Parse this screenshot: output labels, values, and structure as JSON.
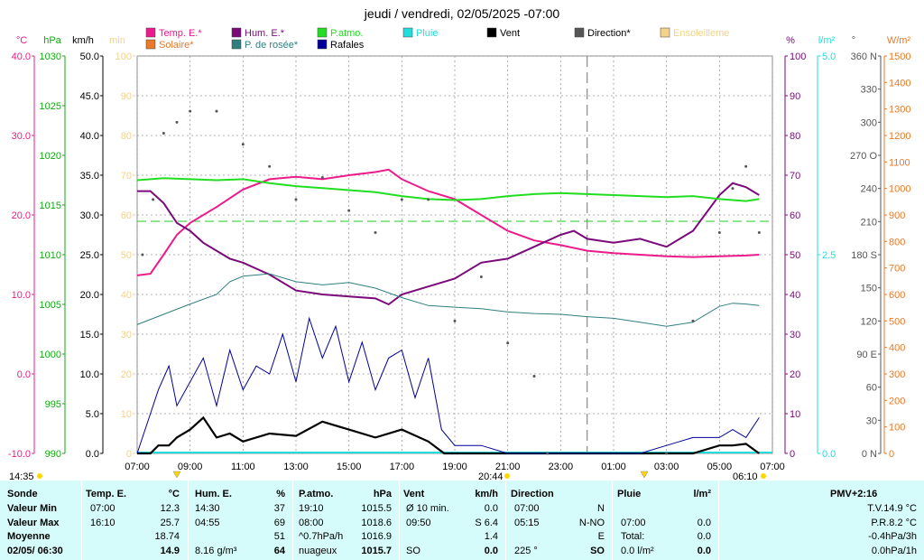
{
  "title": "jeudi / vendredi, 02/05/2025  -07:00",
  "colors": {
    "temp": "#ec1b8c",
    "hum": "#7a0a7a",
    "patmo": "#22dd22",
    "pluie": "#22dddd",
    "vent": "#000000",
    "direction": "#555555",
    "ensoleillement": "#f3d28a",
    "solaire": "#e87a2a",
    "rosee": "#2f7f7f",
    "rafales": "#000099"
  },
  "legend": [
    {
      "key": "temp",
      "label": "Temp. E.*"
    },
    {
      "key": "hum",
      "label": "Hum. E.*"
    },
    {
      "key": "patmo",
      "label": "P.atmo."
    },
    {
      "key": "pluie",
      "label": "Pluie"
    },
    {
      "key": "vent",
      "label": "Vent"
    },
    {
      "key": "direction",
      "label": "Direction*"
    },
    {
      "key": "ensoleillement",
      "label": "Ensoleilleme"
    },
    {
      "key": "solaire",
      "label": "Solaire*"
    },
    {
      "key": "rosee",
      "label": "P. de rosée*"
    },
    {
      "key": "rafales",
      "label": "Rafales"
    }
  ],
  "axis_units": {
    "temp": "°C",
    "hpa": "hPa",
    "kmh": "km/h",
    "min": "min",
    "pct": "%",
    "rain": "l/m²",
    "deg": "°",
    "wm2": "W/m²"
  },
  "chart_data": {
    "type": "line",
    "x_ticks": [
      "07:00",
      "09:00",
      "11:00",
      "13:00",
      "15:00",
      "17:00",
      "19:00",
      "21:00",
      "23:00",
      "01:00",
      "03:00",
      "05:00",
      "07:00"
    ],
    "x_range_hours": [
      0,
      24
    ],
    "markers": {
      "sunrise": "06:10",
      "sunset": "20:44",
      "start": "14:35"
    },
    "axes": {
      "temp": {
        "min": -10,
        "max": 40,
        "ticks": [
          -10.0,
          0.0,
          10.0,
          20.0,
          30.0,
          40.0
        ]
      },
      "hpa": {
        "min": 990,
        "max": 1030,
        "ticks": [
          990,
          995,
          1000,
          1005,
          1010,
          1015,
          1020,
          1025,
          1030
        ]
      },
      "kmh": {
        "min": 0,
        "max": 50,
        "ticks": [
          0.0,
          5.0,
          10.0,
          15.0,
          20.0,
          25.0,
          30.0,
          35.0,
          40.0,
          45.0,
          50.0
        ]
      },
      "min": {
        "min": 0,
        "max": 100,
        "ticks": [
          0,
          10,
          20,
          30,
          40,
          50,
          60,
          70,
          80,
          90,
          100
        ]
      },
      "pct": {
        "min": 0,
        "max": 100,
        "ticks": [
          0,
          10,
          20,
          30,
          40,
          50,
          60,
          70,
          80,
          90,
          100
        ]
      },
      "rain": {
        "min": 0,
        "max": 5,
        "ticks": [
          0.0,
          2.5,
          5.0
        ]
      },
      "deg": {
        "ticks": [
          "0 N",
          "30",
          "60",
          "90 E",
          "120",
          "150",
          "180 S",
          "210",
          "240",
          "270 O",
          "300",
          "330",
          "360 N"
        ]
      },
      "wm2": {
        "min": 0,
        "max": 1500,
        "ticks": [
          0,
          100,
          200,
          300,
          400,
          500,
          600,
          700,
          800,
          900,
          1000,
          1100,
          1200,
          1300,
          1400,
          1500
        ]
      }
    },
    "series": [
      {
        "key": "temp",
        "name": "Temp. E.*",
        "axis": "temp",
        "points": [
          [
            0,
            12.4
          ],
          [
            0.5,
            12.6
          ],
          [
            1,
            15
          ],
          [
            1.5,
            17.5
          ],
          [
            2,
            19
          ],
          [
            3,
            21
          ],
          [
            4,
            23.2
          ],
          [
            5,
            24.5
          ],
          [
            6,
            24.8
          ],
          [
            7,
            24.5
          ],
          [
            8,
            25
          ],
          [
            9,
            25.4
          ],
          [
            9.5,
            25.7
          ],
          [
            10,
            24.5
          ],
          [
            11,
            23
          ],
          [
            12,
            22
          ],
          [
            13,
            20
          ],
          [
            14,
            18
          ],
          [
            15,
            16.8
          ],
          [
            16,
            16.2
          ],
          [
            17,
            15.5
          ],
          [
            18,
            15.2
          ],
          [
            19,
            15
          ],
          [
            20,
            14.8
          ],
          [
            21,
            14.7
          ],
          [
            22,
            14.8
          ],
          [
            23,
            14.9
          ],
          [
            23.5,
            15
          ]
        ]
      },
      {
        "key": "hum",
        "name": "Hum. E.*",
        "axis": "pct",
        "points": [
          [
            0,
            66
          ],
          [
            0.5,
            66
          ],
          [
            1,
            63
          ],
          [
            1.5,
            58
          ],
          [
            2,
            56
          ],
          [
            2.5,
            53
          ],
          [
            3,
            51
          ],
          [
            3.5,
            49
          ],
          [
            4,
            48
          ],
          [
            5,
            45
          ],
          [
            6,
            41
          ],
          [
            7,
            40
          ],
          [
            8,
            39.5
          ],
          [
            9,
            39
          ],
          [
            9.5,
            37.5
          ],
          [
            10,
            40
          ],
          [
            11,
            42
          ],
          [
            12,
            44
          ],
          [
            13,
            48
          ],
          [
            14,
            49
          ],
          [
            15,
            52
          ],
          [
            16,
            55
          ],
          [
            16.5,
            56
          ],
          [
            17,
            54
          ],
          [
            18,
            53
          ],
          [
            19,
            54
          ],
          [
            20,
            52
          ],
          [
            21,
            56
          ],
          [
            22,
            65
          ],
          [
            22.5,
            68
          ],
          [
            23,
            67
          ],
          [
            23.5,
            65
          ]
        ]
      },
      {
        "key": "patmo",
        "name": "P.atmo.",
        "axis": "hpa",
        "points": [
          [
            0,
            1017.5
          ],
          [
            1,
            1017.7
          ],
          [
            2,
            1017.6
          ],
          [
            3,
            1017.5
          ],
          [
            4,
            1017.6
          ],
          [
            5,
            1017.2
          ],
          [
            6,
            1016.9
          ],
          [
            7,
            1016.7
          ],
          [
            8,
            1016.5
          ],
          [
            9,
            1016.3
          ],
          [
            10,
            1015.9
          ],
          [
            11,
            1015.6
          ],
          [
            12,
            1015.5
          ],
          [
            13,
            1015.6
          ],
          [
            14,
            1015.9
          ],
          [
            15,
            1016.1
          ],
          [
            16,
            1016.2
          ],
          [
            17,
            1016.1
          ],
          [
            18,
            1016.0
          ],
          [
            19,
            1015.9
          ],
          [
            20,
            1015.8
          ],
          [
            21,
            1015.9
          ],
          [
            22,
            1015.6
          ],
          [
            23,
            1015.4
          ],
          [
            23.5,
            1015.6
          ]
        ]
      },
      {
        "key": "rosee",
        "name": "P. de rosée*",
        "axis": "temp",
        "points": [
          [
            0,
            6.2
          ],
          [
            1,
            7.5
          ],
          [
            2,
            8.8
          ],
          [
            3,
            10
          ],
          [
            3.5,
            11.6
          ],
          [
            4,
            12.3
          ],
          [
            5,
            12.6
          ],
          [
            6,
            11.6
          ],
          [
            7,
            11.2
          ],
          [
            8,
            11.5
          ],
          [
            9,
            10.8
          ],
          [
            10,
            9.6
          ],
          [
            11,
            8.6
          ],
          [
            12,
            8.4
          ],
          [
            13,
            8.2
          ],
          [
            14,
            7.8
          ],
          [
            15,
            7.6
          ],
          [
            16,
            7.5
          ],
          [
            17,
            7.2
          ],
          [
            18,
            7.0
          ],
          [
            19,
            6.5
          ],
          [
            20,
            6.0
          ],
          [
            21,
            6.5
          ],
          [
            22,
            8.5
          ],
          [
            22.5,
            8.9
          ],
          [
            23,
            8.8
          ],
          [
            23.5,
            8.6
          ]
        ]
      },
      {
        "key": "vent",
        "name": "Vent",
        "axis": "kmh",
        "points": [
          [
            0,
            0
          ],
          [
            0.5,
            0
          ],
          [
            0.8,
            1
          ],
          [
            1.2,
            1
          ],
          [
            1.5,
            2
          ],
          [
            2,
            3
          ],
          [
            2.5,
            4.5
          ],
          [
            3,
            2
          ],
          [
            3.5,
            2.5
          ],
          [
            4,
            1.5
          ],
          [
            5,
            2.5
          ],
          [
            6,
            2.2
          ],
          [
            7,
            4
          ],
          [
            8,
            3
          ],
          [
            9,
            2
          ],
          [
            10,
            3
          ],
          [
            11,
            1.5
          ],
          [
            11.6,
            0
          ],
          [
            20,
            0
          ],
          [
            21,
            0
          ],
          [
            22,
            1
          ],
          [
            22.5,
            1
          ],
          [
            23,
            1.2
          ],
          [
            23.5,
            0
          ]
        ]
      },
      {
        "key": "rafales",
        "name": "Rafales",
        "axis": "kmh",
        "points": [
          [
            0,
            0
          ],
          [
            0.5,
            5
          ],
          [
            0.8,
            8
          ],
          [
            1.2,
            11
          ],
          [
            1.5,
            6
          ],
          [
            2,
            9
          ],
          [
            2.5,
            12
          ],
          [
            3,
            6
          ],
          [
            3.5,
            13
          ],
          [
            4,
            8
          ],
          [
            4.5,
            11
          ],
          [
            5,
            10
          ],
          [
            5.5,
            15
          ],
          [
            6,
            9
          ],
          [
            6.5,
            17
          ],
          [
            7,
            12
          ],
          [
            7.5,
            16
          ],
          [
            8,
            9
          ],
          [
            8.5,
            14
          ],
          [
            9,
            8
          ],
          [
            9.5,
            12
          ],
          [
            10,
            13
          ],
          [
            10.5,
            7
          ],
          [
            11,
            12
          ],
          [
            11.5,
            3
          ],
          [
            12,
            1
          ],
          [
            13,
            1
          ],
          [
            14,
            0
          ],
          [
            19,
            0
          ],
          [
            20,
            1
          ],
          [
            21,
            2
          ],
          [
            22,
            2
          ],
          [
            22.5,
            3
          ],
          [
            23,
            2
          ],
          [
            23.5,
            4.5
          ]
        ]
      },
      {
        "key": "direction",
        "name": "Direction*",
        "axis": "deg",
        "style": "dots",
        "points": [
          [
            0.2,
            180
          ],
          [
            0.6,
            230
          ],
          [
            1,
            290
          ],
          [
            1.5,
            300
          ],
          [
            2,
            310
          ],
          [
            3,
            310
          ],
          [
            4,
            280
          ],
          [
            5,
            260
          ],
          [
            6,
            230
          ],
          [
            7,
            250
          ],
          [
            8,
            220
          ],
          [
            9,
            200
          ],
          [
            10,
            230
          ],
          [
            11,
            230
          ],
          [
            12,
            120
          ],
          [
            13,
            160
          ],
          [
            14,
            100
          ],
          [
            15,
            70
          ],
          [
            15.5,
            0
          ],
          [
            20,
            0
          ],
          [
            21,
            120
          ],
          [
            22,
            200
          ],
          [
            22.5,
            240
          ],
          [
            23,
            260
          ],
          [
            23.5,
            200
          ]
        ]
      }
    ],
    "hline_temp_dashed": 19.2
  },
  "table": {
    "headers": [
      {
        "label": "Sonde"
      },
      {
        "label": "Temp. E.",
        "unit": "°C"
      },
      {
        "label": "Hum. E.",
        "unit": "%"
      },
      {
        "label": "P.atmo.",
        "unit": "hPa"
      },
      {
        "label": "Vent",
        "unit": "km/h"
      },
      {
        "label": "Direction"
      },
      {
        "label": "Pluie",
        "unit": "l/m²"
      },
      {
        "label": "PMV+2:16"
      }
    ],
    "rows": [
      {
        "label": "Valeur Min",
        "temp_t": "07:00",
        "temp_v": "12.3",
        "hum_t": "14:30",
        "hum_v": "37",
        "p_t": "19:10",
        "p_v": "1015.5",
        "v_t": "Ø 10 min.",
        "v_v": "0.0",
        "d_t": "07:00",
        "d_v": "N",
        "r_t": "",
        "r_v": "",
        "pmv": "T.V.14.9 °C"
      },
      {
        "label": "Valeur Max",
        "temp_t": "16:10",
        "temp_v": "25.7",
        "hum_t": "04:55",
        "hum_v": "69",
        "p_t": "08:00",
        "p_v": "1018.6",
        "v_t": "09:50",
        "v_v": "S 6.4",
        "d_t": "05:15",
        "d_v": "N-NO",
        "r_t": "07:00",
        "r_v": "0.0",
        "pmv": "P.R.8.2 °C"
      },
      {
        "label": "Moyenne",
        "temp_t": "",
        "temp_v": "18.74",
        "hum_t": "",
        "hum_v": "51",
        "p_t": "^0.7hPa/h",
        "p_v": "1016.9",
        "v_t": "",
        "v_v": "1.4",
        "d_t": "",
        "d_v": "E",
        "r_t": "Total:",
        "r_v": "0.0",
        "pmv": "-0.4hPa/3h"
      },
      {
        "label": "02/05/ 06:30",
        "temp_t": "",
        "temp_v": "14.9",
        "hum_t": "8.16 g/m³",
        "hum_v": "64",
        "p_t": "nuageux",
        "p_v": "1015.7",
        "v_t": "SO",
        "v_v": "0.0",
        "d_t": "225 °",
        "d_v": "SO",
        "r_t": "0.0 l/m²",
        "r_v": "0.0",
        "pmv": "0.0hPa/1h"
      }
    ]
  }
}
